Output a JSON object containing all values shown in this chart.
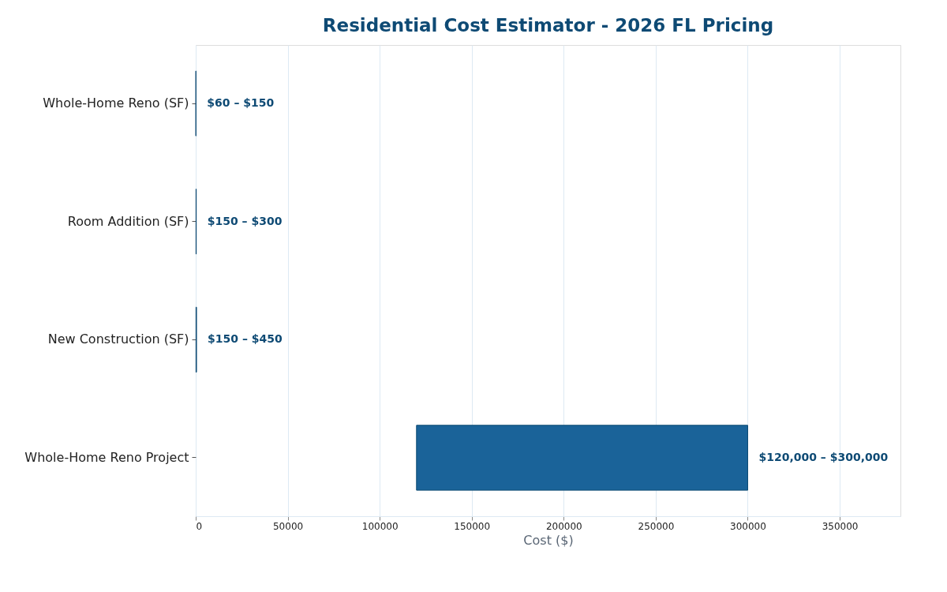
{
  "chart_data": {
    "type": "bar",
    "orientation": "horizontal",
    "title": "Residential Cost Estimator - 2026 FL Pricing",
    "xlabel": "Cost ($)",
    "categories": [
      "Whole-Home Reno (SF)",
      "Room Addition (SF)",
      "New Construction (SF)",
      "Whole-Home Reno Project"
    ],
    "base": [
      60,
      150,
      150,
      120000
    ],
    "values": [
      90,
      150,
      300,
      180000
    ],
    "annotations": [
      {
        "text": "$60 – $150",
        "x": 150,
        "y": "Whole-Home Reno (SF)"
      },
      {
        "text": "$150 – $300",
        "x": 300,
        "y": "Room Addition (SF)"
      },
      {
        "text": "$150 – $450",
        "x": 450,
        "y": "New Construction (SF)"
      },
      {
        "text": "$120,000 – $300,000",
        "x": 300000,
        "y": "Whole-Home Reno Project"
      }
    ],
    "color": "#1a6399",
    "xlim": [
      0,
      383000
    ],
    "xticks": [
      0,
      50000,
      100000,
      150000,
      200000,
      250000,
      300000,
      350000
    ],
    "grid": "x",
    "legend": false
  }
}
